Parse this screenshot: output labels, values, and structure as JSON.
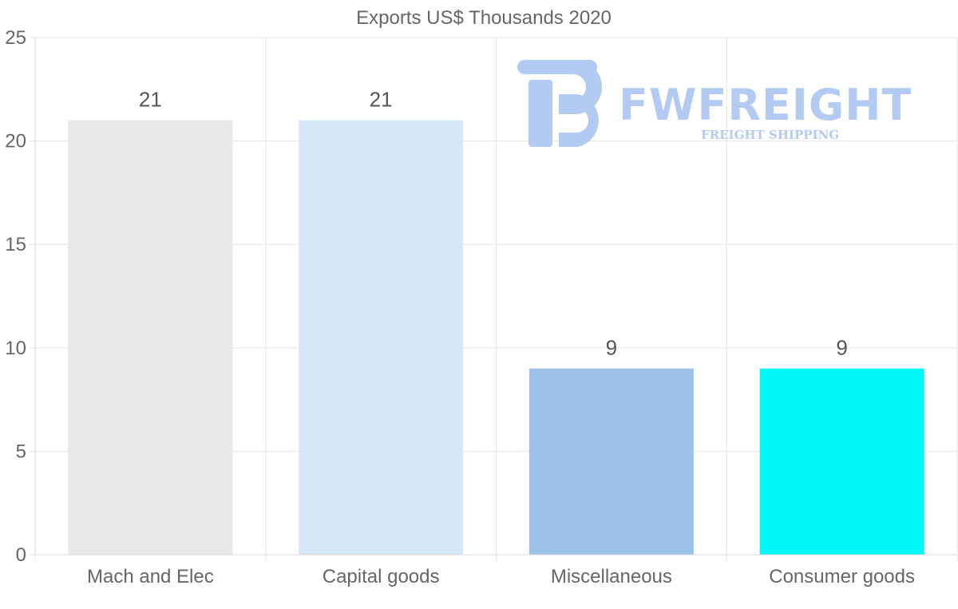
{
  "chart_data": {
    "type": "bar",
    "title": "Exports US$ Thousands 2020",
    "categories": [
      "Mach and Elec",
      "Capital goods",
      "Miscellaneous",
      "Consumer goods"
    ],
    "values": [
      21,
      21,
      9,
      9
    ],
    "colors": [
      "#e8e8e8",
      "#d6e8f8",
      "#9cc3e7",
      "#00f8f8"
    ],
    "xlabel": "",
    "ylabel": "",
    "ylim": [
      0,
      25
    ],
    "yticks": [
      0,
      5,
      10,
      15,
      20,
      25
    ],
    "grid": true,
    "legend": "none"
  },
  "watermark": {
    "brand": "FWFREIGHT",
    "tagline": "FREIGHT SHIPPING",
    "color": "#b3cbf2"
  }
}
